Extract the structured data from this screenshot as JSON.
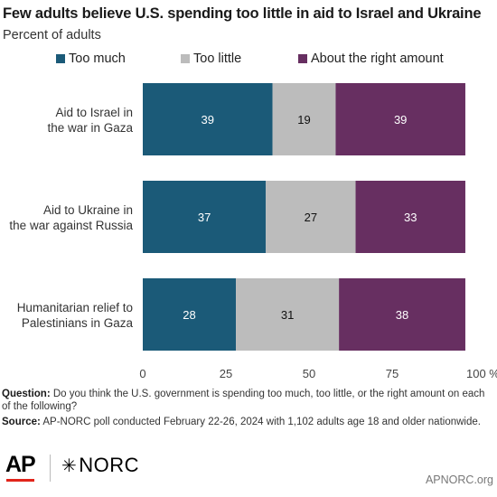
{
  "title": "Few adults believe U.S. spending too little in aid to Israel and Ukraine",
  "subtitle": "Percent of adults",
  "colors": {
    "too_much": "#1b5a78",
    "too_little": "#bcbcbc",
    "right_amount": "#672f61"
  },
  "chart_data": {
    "type": "bar",
    "orientation": "horizontal",
    "stacked": true,
    "categories": [
      "Aid to Israel in the war in Gaza",
      "Aid to Ukraine in the war against Russia",
      "Humanitarian relief to Palestinians in Gaza"
    ],
    "category_lines": [
      [
        "Aid to Israel in",
        "the war in Gaza"
      ],
      [
        "Aid to Ukraine in",
        "the war against Russia"
      ],
      [
        "Humanitarian relief to",
        "Palestinians in Gaza"
      ]
    ],
    "series": [
      {
        "name": "Too much",
        "values": [
          39,
          37,
          28
        ]
      },
      {
        "name": "Too little",
        "values": [
          19,
          27,
          31
        ]
      },
      {
        "name": "About the right amount",
        "values": [
          39,
          33,
          38
        ]
      }
    ],
    "xlim": [
      0,
      100
    ],
    "xticks": [
      0,
      25,
      50,
      75,
      100
    ],
    "xtick_labels": [
      "0",
      "25",
      "50",
      "75",
      "100 %"
    ],
    "legend_position": "top",
    "grid": false
  },
  "footnotes": {
    "question_label": "Question:",
    "question_text": "Do you think the U.S. government is spending too much, too little, or the right amount on each of the following?",
    "source_label": "Source:",
    "source_text": "AP-NORC poll conducted February 22-26, 2024 with 1,102 adults age 18 and older nationwide."
  },
  "logos": {
    "ap": "AP",
    "norc": "NORC",
    "norc_mark": "✳"
  },
  "credit": "APNORC.org"
}
